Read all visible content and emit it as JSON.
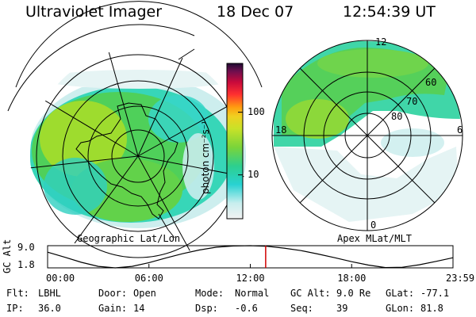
{
  "header": {
    "title": "Ultraviolet Imager",
    "date": "18 Dec 07",
    "time": "12:54:39 UT"
  },
  "left_panel": {
    "label": "Geographic Lat/Lon"
  },
  "right_panel": {
    "label": "Apex MLat/MLT",
    "mlt_labels": [
      "12",
      "18",
      "6",
      "0"
    ],
    "mlat_labels": [
      "60",
      "70",
      "80"
    ]
  },
  "colorbar": {
    "label": "photon cm⁻²s⁻¹",
    "ticks": [
      {
        "value": 10,
        "label": "10"
      },
      {
        "value": 100,
        "label": "100"
      }
    ],
    "range": [
      2,
      600
    ],
    "scale": "log"
  },
  "chart_data": {
    "type": "line",
    "ylabel": "GC Alt",
    "yticks": [
      "9.0",
      "1.8"
    ],
    "ylim": [
      1.8,
      9.0
    ],
    "xlim": [
      0,
      24
    ],
    "xticks": [
      "00:00",
      "06:00",
      "12:00",
      "18:00",
      "23:59"
    ],
    "x": [
      0,
      1,
      2,
      3,
      4,
      5,
      6,
      7,
      8,
      9,
      10,
      11,
      12,
      13,
      14,
      15,
      16,
      17,
      18,
      19,
      20,
      21,
      22,
      23,
      24
    ],
    "y": [
      6.9,
      5.3,
      3.6,
      2.3,
      1.8,
      2.3,
      3.5,
      5.0,
      6.4,
      7.6,
      8.5,
      8.9,
      9.0,
      8.8,
      8.2,
      7.4,
      6.3,
      5.1,
      3.8,
      2.7,
      1.9,
      2.0,
      2.8,
      3.9,
      5.1
    ],
    "marker_time": 12.91
  },
  "info": {
    "row1": [
      {
        "label": "Flt:",
        "value": "LBHL"
      },
      {
        "label": "Door:",
        "value": "Open"
      },
      {
        "label": "Mode:",
        "value": "Normal"
      },
      {
        "label": "GC Alt:",
        "value": "9.0 Re"
      },
      {
        "label": "GLat:",
        "value": "-77.1"
      }
    ],
    "row2": [
      {
        "label": "IP:",
        "value": "36.0"
      },
      {
        "label": "Gain:",
        "value": "14"
      },
      {
        "label": "Dsp:",
        "value": "-0.6"
      },
      {
        "label": "Seq:",
        "value": "39"
      },
      {
        "label": "GLon:",
        "value": "81.8"
      }
    ]
  }
}
